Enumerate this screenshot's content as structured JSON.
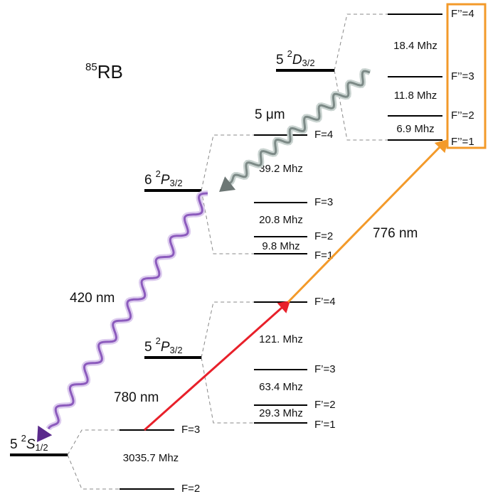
{
  "title": {
    "mass": "85",
    "element": "RB"
  },
  "levels": [
    {
      "n": "5",
      "mult": "2",
      "L": "D",
      "J": "3/2",
      "sublevels": [
        "F’’=4",
        "F’’=3",
        "F’’=2",
        "F’’=1"
      ],
      "splittings": [
        "18.4 Mhz",
        "11.8 Mhz",
        "6.9 Mhz"
      ]
    },
    {
      "n": "6",
      "mult": "2",
      "L": "P",
      "J": "3/2",
      "sublevels": [
        "F=4",
        "F=3",
        "F=2",
        "F=1"
      ],
      "splittings": [
        "39.2 Mhz",
        "20.8 Mhz",
        "9.8 Mhz"
      ]
    },
    {
      "n": "5",
      "mult": "2",
      "L": "P",
      "J": "3/2",
      "sublevels": [
        "F’=4",
        "F’=3",
        "F’=2",
        "F’=1"
      ],
      "splittings": [
        "121. Mhz",
        "63.4 Mhz",
        "29.3 Mhz"
      ]
    },
    {
      "n": "5",
      "mult": "2",
      "L": "S",
      "J": "1/2",
      "sublevels": [
        "F=3",
        "F=2"
      ],
      "splittings": [
        "3035.7 Mhz"
      ]
    }
  ],
  "transitions": [
    {
      "label": "5 μm"
    },
    {
      "label": "420 nm"
    },
    {
      "label": "780 nm"
    },
    {
      "label": "776 nm"
    }
  ]
}
